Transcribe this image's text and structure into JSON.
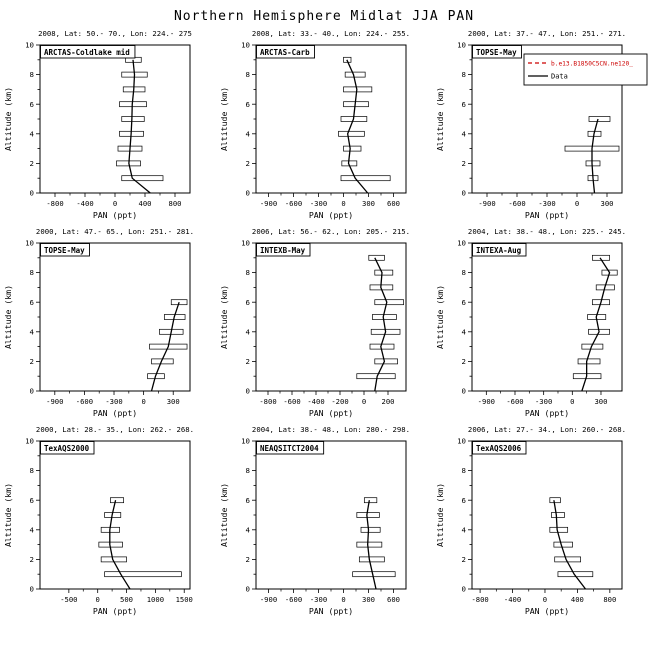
{
  "figure_title": "Northern Hemisphere Midlat JJA PAN",
  "legend": {
    "model_label": "b.e13.B1850C5CN.ne120_",
    "model_color": "#cc0000",
    "data_label": "Data",
    "data_color": "#000000"
  },
  "chart_data": [
    {
      "type": "line",
      "subtitle": "2008, Lat: 50.- 70., Lon: 224.- 275",
      "label": "ARCTAS-Coldlake mid",
      "xlabel": "PAN (ppt)",
      "ylabel": "Altitude (km)",
      "xlim": [
        -1000,
        1000
      ],
      "xticks": [
        -800,
        -400,
        0,
        400,
        800
      ],
      "ylim": [
        0,
        10
      ],
      "yticks": [
        0,
        2,
        4,
        6,
        8,
        10
      ],
      "has_legend": false,
      "series": [
        {
          "name": "Data",
          "points": [
            {
              "alt": 9,
              "pan": 240
            },
            {
              "alt": 8,
              "pan": 260
            },
            {
              "alt": 7,
              "pan": 250
            },
            {
              "alt": 6,
              "pan": 230
            },
            {
              "alt": 5,
              "pan": 225
            },
            {
              "alt": 4,
              "pan": 215
            },
            {
              "alt": 3,
              "pan": 200
            },
            {
              "alt": 2,
              "pan": 185
            },
            {
              "alt": 1,
              "pan": 230
            },
            {
              "alt": 0,
              "pan": 470
            }
          ]
        }
      ],
      "boxes": [
        {
          "alt": 9,
          "min": 140,
          "max": 350
        },
        {
          "alt": 8,
          "min": 90,
          "max": 430
        },
        {
          "alt": 7,
          "min": 110,
          "max": 400
        },
        {
          "alt": 6,
          "min": 60,
          "max": 420
        },
        {
          "alt": 5,
          "min": 90,
          "max": 390
        },
        {
          "alt": 4,
          "min": 60,
          "max": 380
        },
        {
          "alt": 3,
          "min": 40,
          "max": 360
        },
        {
          "alt": 2,
          "min": 20,
          "max": 340
        },
        {
          "alt": 1,
          "min": 90,
          "max": 640
        }
      ]
    },
    {
      "type": "line",
      "subtitle": "2008, Lat: 33.- 40., Lon: 224.- 255.",
      "label": "ARCTAS-Carb",
      "xlabel": "PAN (ppt)",
      "ylabel": "Altitude (km)",
      "xlim": [
        -1050,
        750
      ],
      "xticks": [
        -900,
        -600,
        -300,
        0,
        300,
        600
      ],
      "ylim": [
        0,
        10
      ],
      "yticks": [
        0,
        2,
        4,
        6,
        8,
        10
      ],
      "has_legend": false,
      "series": [
        {
          "name": "Data",
          "points": [
            {
              "alt": 9,
              "pan": 40
            },
            {
              "alt": 8,
              "pan": 120
            },
            {
              "alt": 7,
              "pan": 160
            },
            {
              "alt": 6,
              "pan": 140
            },
            {
              "alt": 5,
              "pan": 120
            },
            {
              "alt": 4,
              "pan": 50
            },
            {
              "alt": 3,
              "pan": 80
            },
            {
              "alt": 2,
              "pan": 60
            },
            {
              "alt": 1,
              "pan": 140
            },
            {
              "alt": 0,
              "pan": 290
            }
          ]
        }
      ],
      "boxes": [
        {
          "alt": 9,
          "min": 0,
          "max": 90
        },
        {
          "alt": 8,
          "min": 20,
          "max": 260
        },
        {
          "alt": 7,
          "min": 0,
          "max": 340
        },
        {
          "alt": 6,
          "min": 0,
          "max": 300
        },
        {
          "alt": 5,
          "min": -30,
          "max": 280
        },
        {
          "alt": 4,
          "min": -60,
          "max": 250
        },
        {
          "alt": 3,
          "min": 0,
          "max": 210
        },
        {
          "alt": 2,
          "min": -20,
          "max": 160
        },
        {
          "alt": 1,
          "min": -30,
          "max": 560
        }
      ]
    },
    {
      "type": "line",
      "subtitle": "2000, Lat: 37.- 47., Lon: 251.- 271.",
      "label": "TOPSE-May",
      "xlabel": "PAN (ppt)",
      "ylabel": "Altitude (km)",
      "xlim": [
        -1050,
        450
      ],
      "xticks": [
        -900,
        -600,
        -300,
        0,
        300
      ],
      "ylim": [
        0,
        10
      ],
      "yticks": [
        0,
        2,
        4,
        6,
        8,
        10
      ],
      "has_legend": true,
      "series": [
        {
          "name": "Data",
          "points": [
            {
              "alt": 5,
              "pan": 210
            },
            {
              "alt": 4,
              "pan": 170
            },
            {
              "alt": 3,
              "pan": 150
            },
            {
              "alt": 2,
              "pan": 150
            },
            {
              "alt": 1,
              "pan": 160
            },
            {
              "alt": 0,
              "pan": 175
            }
          ]
        }
      ],
      "boxes": [
        {
          "alt": 5,
          "min": 120,
          "max": 330
        },
        {
          "alt": 4,
          "min": 110,
          "max": 240
        },
        {
          "alt": 3,
          "min": -120,
          "max": 420
        },
        {
          "alt": 2,
          "min": 90,
          "max": 230
        },
        {
          "alt": 1,
          "min": 110,
          "max": 210
        }
      ]
    },
    {
      "type": "line",
      "subtitle": "2000, Lat: 47.- 65., Lon: 251.- 281.",
      "label": "TOPSE-May",
      "xlabel": "PAN (ppt)",
      "ylabel": "Altitude (km)",
      "xlim": [
        -1050,
        470
      ],
      "xticks": [
        -900,
        -600,
        -300,
        0,
        300
      ],
      "ylim": [
        0,
        10
      ],
      "yticks": [
        0,
        2,
        4,
        6,
        8,
        10
      ],
      "has_legend": false,
      "series": [
        {
          "name": "Data",
          "points": [
            {
              "alt": 6,
              "pan": 360
            },
            {
              "alt": 5,
              "pan": 310
            },
            {
              "alt": 4,
              "pan": 280
            },
            {
              "alt": 3,
              "pan": 250
            },
            {
              "alt": 2,
              "pan": 180
            },
            {
              "alt": 1,
              "pan": 120
            },
            {
              "alt": 0,
              "pan": 80
            }
          ]
        }
      ],
      "boxes": [
        {
          "alt": 6,
          "min": 280,
          "max": 440
        },
        {
          "alt": 5,
          "min": 210,
          "max": 420
        },
        {
          "alt": 4,
          "min": 160,
          "max": 400
        },
        {
          "alt": 3,
          "min": 60,
          "max": 440
        },
        {
          "alt": 2,
          "min": 80,
          "max": 300
        },
        {
          "alt": 1,
          "min": 40,
          "max": 210
        }
      ]
    },
    {
      "type": "line",
      "subtitle": "2006, Lat: 56.- 62., Lon: 205.- 215.",
      "label": "INTEXB-May",
      "xlabel": "PAN (ppt)",
      "ylabel": "Altitude (km)",
      "xlim": [
        -900,
        350
      ],
      "xticks": [
        -800,
        -600,
        -400,
        -200,
        0,
        200
      ],
      "ylim": [
        0,
        10
      ],
      "yticks": [
        0,
        2,
        4,
        6,
        8,
        10
      ],
      "has_legend": false,
      "series": [
        {
          "name": "Data",
          "points": [
            {
              "alt": 9,
              "pan": 90
            },
            {
              "alt": 8,
              "pan": 150
            },
            {
              "alt": 7,
              "pan": 140
            },
            {
              "alt": 6,
              "pan": 190
            },
            {
              "alt": 5,
              "pan": 160
            },
            {
              "alt": 4,
              "pan": 180
            },
            {
              "alt": 3,
              "pan": 140
            },
            {
              "alt": 2,
              "pan": 170
            },
            {
              "alt": 1,
              "pan": 110
            },
            {
              "alt": 0,
              "pan": 90
            }
          ]
        }
      ],
      "boxes": [
        {
          "alt": 9,
          "min": 40,
          "max": 170
        },
        {
          "alt": 8,
          "min": 90,
          "max": 240
        },
        {
          "alt": 7,
          "min": 50,
          "max": 240
        },
        {
          "alt": 6,
          "min": 90,
          "max": 330
        },
        {
          "alt": 5,
          "min": 70,
          "max": 270
        },
        {
          "alt": 4,
          "min": 60,
          "max": 300
        },
        {
          "alt": 3,
          "min": 50,
          "max": 250
        },
        {
          "alt": 2,
          "min": 90,
          "max": 280
        },
        {
          "alt": 1,
          "min": -60,
          "max": 260
        }
      ]
    },
    {
      "type": "line",
      "subtitle": "2004, Lat: 38.- 48., Lon: 225.- 245.",
      "label": "INTEXA-Aug",
      "xlabel": "PAN (ppt)",
      "ylabel": "Altitude (km)",
      "xlim": [
        -1050,
        520
      ],
      "xticks": [
        -900,
        -600,
        -300,
        0,
        300
      ],
      "ylim": [
        0,
        10
      ],
      "yticks": [
        0,
        2,
        4,
        6,
        8,
        10
      ],
      "has_legend": false,
      "series": [
        {
          "name": "Data",
          "points": [
            {
              "alt": 9,
              "pan": 290
            },
            {
              "alt": 8,
              "pan": 390
            },
            {
              "alt": 7,
              "pan": 340
            },
            {
              "alt": 6,
              "pan": 300
            },
            {
              "alt": 5,
              "pan": 250
            },
            {
              "alt": 4,
              "pan": 280
            },
            {
              "alt": 3,
              "pan": 200
            },
            {
              "alt": 2,
              "pan": 150
            },
            {
              "alt": 1,
              "pan": 150
            },
            {
              "alt": 0,
              "pan": 100
            }
          ]
        }
      ],
      "boxes": [
        {
          "alt": 9,
          "min": 210,
          "max": 390
        },
        {
          "alt": 8,
          "min": 310,
          "max": 470
        },
        {
          "alt": 7,
          "min": 250,
          "max": 440
        },
        {
          "alt": 6,
          "min": 210,
          "max": 390
        },
        {
          "alt": 5,
          "min": 160,
          "max": 350
        },
        {
          "alt": 4,
          "min": 170,
          "max": 390
        },
        {
          "alt": 3,
          "min": 100,
          "max": 320
        },
        {
          "alt": 2,
          "min": 60,
          "max": 290
        },
        {
          "alt": 1,
          "min": 10,
          "max": 300
        }
      ]
    },
    {
      "type": "line",
      "subtitle": "2000, Lat: 28.- 35., Lon: 262.- 268.",
      "label": "TexAQS2000",
      "xlabel": "PAN (ppt)",
      "ylabel": "Altitude (km)",
      "xlim": [
        -1000,
        1600
      ],
      "xticks": [
        -500,
        0,
        500,
        1000,
        1500
      ],
      "ylim": [
        0,
        10
      ],
      "yticks": [
        0,
        2,
        4,
        6,
        8,
        10
      ],
      "has_legend": false,
      "series": [
        {
          "name": "Data",
          "points": [
            {
              "alt": 6,
              "pan": 310
            },
            {
              "alt": 5,
              "pan": 250
            },
            {
              "alt": 4,
              "pan": 210
            },
            {
              "alt": 3,
              "pan": 210
            },
            {
              "alt": 2,
              "pan": 260
            },
            {
              "alt": 1,
              "pan": 400
            },
            {
              "alt": 0,
              "pan": 560
            }
          ]
        }
      ],
      "boxes": [
        {
          "alt": 6,
          "min": 220,
          "max": 450
        },
        {
          "alt": 5,
          "min": 120,
          "max": 400
        },
        {
          "alt": 4,
          "min": 60,
          "max": 380
        },
        {
          "alt": 3,
          "min": 20,
          "max": 430
        },
        {
          "alt": 2,
          "min": 60,
          "max": 500
        },
        {
          "alt": 1,
          "min": 120,
          "max": 1450
        }
      ]
    },
    {
      "type": "line",
      "subtitle": "2004, Lat: 38.- 48., Lon: 280.- 298.",
      "label": "NEAQSITCT2004",
      "xlabel": "PAN (ppt)",
      "ylabel": "Altitude (km)",
      "xlim": [
        -1050,
        750
      ],
      "xticks": [
        -900,
        -600,
        -300,
        0,
        300,
        600
      ],
      "ylim": [
        0,
        10
      ],
      "yticks": [
        0,
        2,
        4,
        6,
        8,
        10
      ],
      "has_legend": false,
      "series": [
        {
          "name": "Data",
          "points": [
            {
              "alt": 6,
              "pan": 310
            },
            {
              "alt": 5,
              "pan": 280
            },
            {
              "alt": 4,
              "pan": 300
            },
            {
              "alt": 3,
              "pan": 290
            },
            {
              "alt": 2,
              "pan": 310
            },
            {
              "alt": 1,
              "pan": 350
            },
            {
              "alt": 0,
              "pan": 390
            }
          ]
        }
      ],
      "boxes": [
        {
          "alt": 6,
          "min": 250,
          "max": 400
        },
        {
          "alt": 5,
          "min": 160,
          "max": 430
        },
        {
          "alt": 4,
          "min": 210,
          "max": 440
        },
        {
          "alt": 3,
          "min": 160,
          "max": 460
        },
        {
          "alt": 2,
          "min": 190,
          "max": 490
        },
        {
          "alt": 1,
          "min": 110,
          "max": 620
        }
      ]
    },
    {
      "type": "line",
      "subtitle": "2006, Lat: 27.- 34., Lon: 260.- 268.",
      "label": "TexAQS2006",
      "xlabel": "PAN (ppt)",
      "ylabel": "Altitude (km)",
      "xlim": [
        -900,
        950
      ],
      "xticks": [
        -800,
        -400,
        0,
        400,
        800
      ],
      "ylim": [
        0,
        10
      ],
      "yticks": [
        0,
        2,
        4,
        6,
        8,
        10
      ],
      "has_legend": false,
      "series": [
        {
          "name": "Data",
          "points": [
            {
              "alt": 6,
              "pan": 110
            },
            {
              "alt": 5,
              "pan": 140
            },
            {
              "alt": 4,
              "pan": 150
            },
            {
              "alt": 3,
              "pan": 200
            },
            {
              "alt": 2,
              "pan": 260
            },
            {
              "alt": 1,
              "pan": 360
            },
            {
              "alt": 0,
              "pan": 500
            }
          ]
        }
      ],
      "boxes": [
        {
          "alt": 6,
          "min": 60,
          "max": 190
        },
        {
          "alt": 5,
          "min": 80,
          "max": 240
        },
        {
          "alt": 4,
          "min": 60,
          "max": 280
        },
        {
          "alt": 3,
          "min": 110,
          "max": 340
        },
        {
          "alt": 2,
          "min": 120,
          "max": 440
        },
        {
          "alt": 1,
          "min": 160,
          "max": 590
        }
      ]
    }
  ]
}
